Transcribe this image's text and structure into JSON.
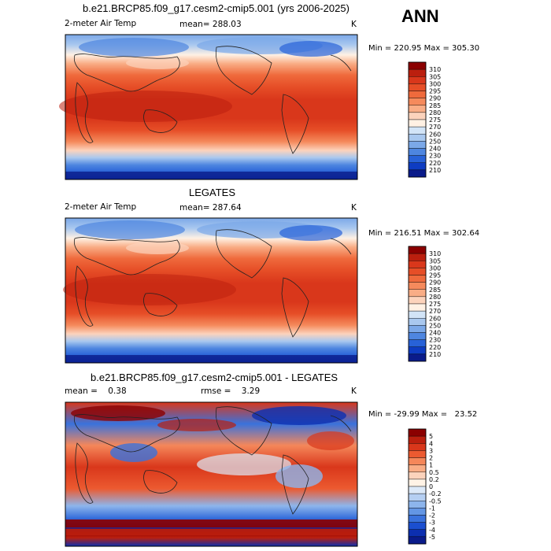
{
  "season": "ANN",
  "panels": [
    {
      "id": "model",
      "title": "b.e21.BRCP85.f09_g17.cesm2-cmip5.001 (yrs 2006-2025)",
      "left_label": "2-meter Air Temp",
      "mid_label": "mean= 288.03",
      "right_label": "K",
      "minmax": "Min = 220.95 Max = 305.30"
    },
    {
      "id": "obs",
      "title": "LEGATES",
      "left_label": "2-meter Air Temp",
      "mid_label": "mean= 287.64",
      "right_label": "K",
      "minmax": "Min = 216.51 Max = 302.64"
    },
    {
      "id": "diff",
      "title": "b.e21.BRCP85.f09_g17.cesm2-cmip5.001 - LEGATES",
      "left_label": "mean =    0.38",
      "mid_label": "rmse =    3.29",
      "right_label": "K",
      "minmax": "Min = -29.99 Max =   23.52"
    }
  ],
  "colorbar_abs": {
    "labels": [
      "310",
      "305",
      "300",
      "295",
      "290",
      "285",
      "280",
      "275",
      "270",
      "260",
      "250",
      "240",
      "230",
      "220",
      "210"
    ],
    "colors": [
      "#8b0000",
      "#bb1f0e",
      "#d9371b",
      "#e64e27",
      "#ef6a3c",
      "#f58a5c",
      "#f9ad86",
      "#fcd3bc",
      "#fff1e4",
      "#d2e4f7",
      "#a9c8ef",
      "#7ba8e8",
      "#4e86e0",
      "#2862d8",
      "#0e3cc2",
      "#0a1b8a"
    ]
  },
  "colorbar_diff": {
    "labels": [
      "5",
      "4",
      "3",
      "2",
      "1",
      "0.5",
      "0.2",
      "0",
      "-0.2",
      "-0.5",
      "-1",
      "-2",
      "-3",
      "-4",
      "-5"
    ],
    "colors": [
      "#8b0000",
      "#bb1f0e",
      "#d9371b",
      "#ec5a30",
      "#f5875a",
      "#f9ad86",
      "#fcd3bc",
      "#fff3e6",
      "#dce9f8",
      "#b5cff2",
      "#8db5ec",
      "#6396e4",
      "#3a72dc",
      "#1b4fd0",
      "#0c2fb0",
      "#0a1b8a"
    ]
  },
  "chart_data": [
    {
      "type": "heatmap",
      "title": "b.e21.BRCP85.f09_g17.cesm2-cmip5.001 (yrs 2006-2025)",
      "variable": "2-meter Air Temp",
      "units": "K",
      "season": "ANN",
      "mean": 288.03,
      "min": 220.95,
      "max": 305.3,
      "contour_levels": [
        210,
        220,
        230,
        240,
        250,
        260,
        270,
        275,
        280,
        285,
        290,
        295,
        300,
        305,
        310
      ]
    },
    {
      "type": "heatmap",
      "title": "LEGATES",
      "variable": "2-meter Air Temp",
      "units": "K",
      "mean": 287.64,
      "min": 216.51,
      "max": 302.64,
      "contour_levels": [
        210,
        220,
        230,
        240,
        250,
        260,
        270,
        275,
        280,
        285,
        290,
        295,
        300,
        305,
        310
      ]
    },
    {
      "type": "heatmap",
      "title": "b.e21.BRCP85.f09_g17.cesm2-cmip5.001 - LEGATES",
      "units": "K",
      "mean": 0.38,
      "rmse": 3.29,
      "min": -29.99,
      "max": 23.52,
      "contour_levels": [
        -5,
        -4,
        -3,
        -2,
        -1,
        -0.5,
        -0.2,
        0,
        0.2,
        0.5,
        1,
        2,
        3,
        4,
        5
      ]
    }
  ]
}
